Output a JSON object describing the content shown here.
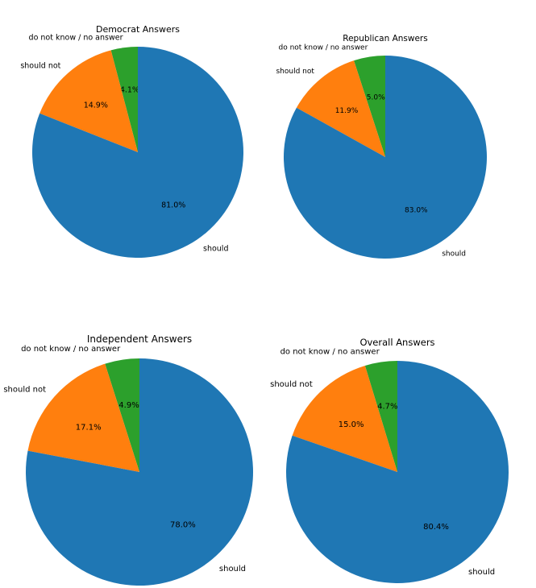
{
  "chart_data": [
    {
      "type": "pie",
      "title": "Democrat Answers",
      "slices": [
        {
          "label": "do not know / no answer",
          "value": 4.1,
          "pct_label": "4.1%",
          "color": "#2ca02c"
        },
        {
          "label": "should not",
          "value": 14.9,
          "pct_label": "14.9%",
          "color": "#ff7f0e"
        },
        {
          "label": "should",
          "value": 81.0,
          "pct_label": "81.0%",
          "color": "#1f77b4"
        }
      ]
    },
    {
      "type": "pie",
      "title": "Republican Answers",
      "slices": [
        {
          "label": "do not know / no answer",
          "value": 5.0,
          "pct_label": "5.0%",
          "color": "#2ca02c"
        },
        {
          "label": "should not",
          "value": 11.9,
          "pct_label": "11.9%",
          "color": "#ff7f0e"
        },
        {
          "label": "should",
          "value": 83.0,
          "pct_label": "83.0%",
          "color": "#1f77b4"
        }
      ]
    },
    {
      "type": "pie",
      "title": "Independent Answers",
      "slices": [
        {
          "label": "do not know / no answer",
          "value": 4.9,
          "pct_label": "4.9%",
          "color": "#2ca02c"
        },
        {
          "label": "should not",
          "value": 17.1,
          "pct_label": "17.1%",
          "color": "#ff7f0e"
        },
        {
          "label": "should",
          "value": 78.0,
          "pct_label": "78.0%",
          "color": "#1f77b4"
        }
      ]
    },
    {
      "type": "pie",
      "title": "Overall Answers",
      "slices": [
        {
          "label": "do not know / no answer",
          "value": 4.7,
          "pct_label": "4.7%",
          "color": "#2ca02c"
        },
        {
          "label": "should not",
          "value": 15.0,
          "pct_label": "15.0%",
          "color": "#ff7f0e"
        },
        {
          "label": "should",
          "value": 80.4,
          "pct_label": "80.4%",
          "color": "#1f77b4"
        }
      ]
    }
  ]
}
